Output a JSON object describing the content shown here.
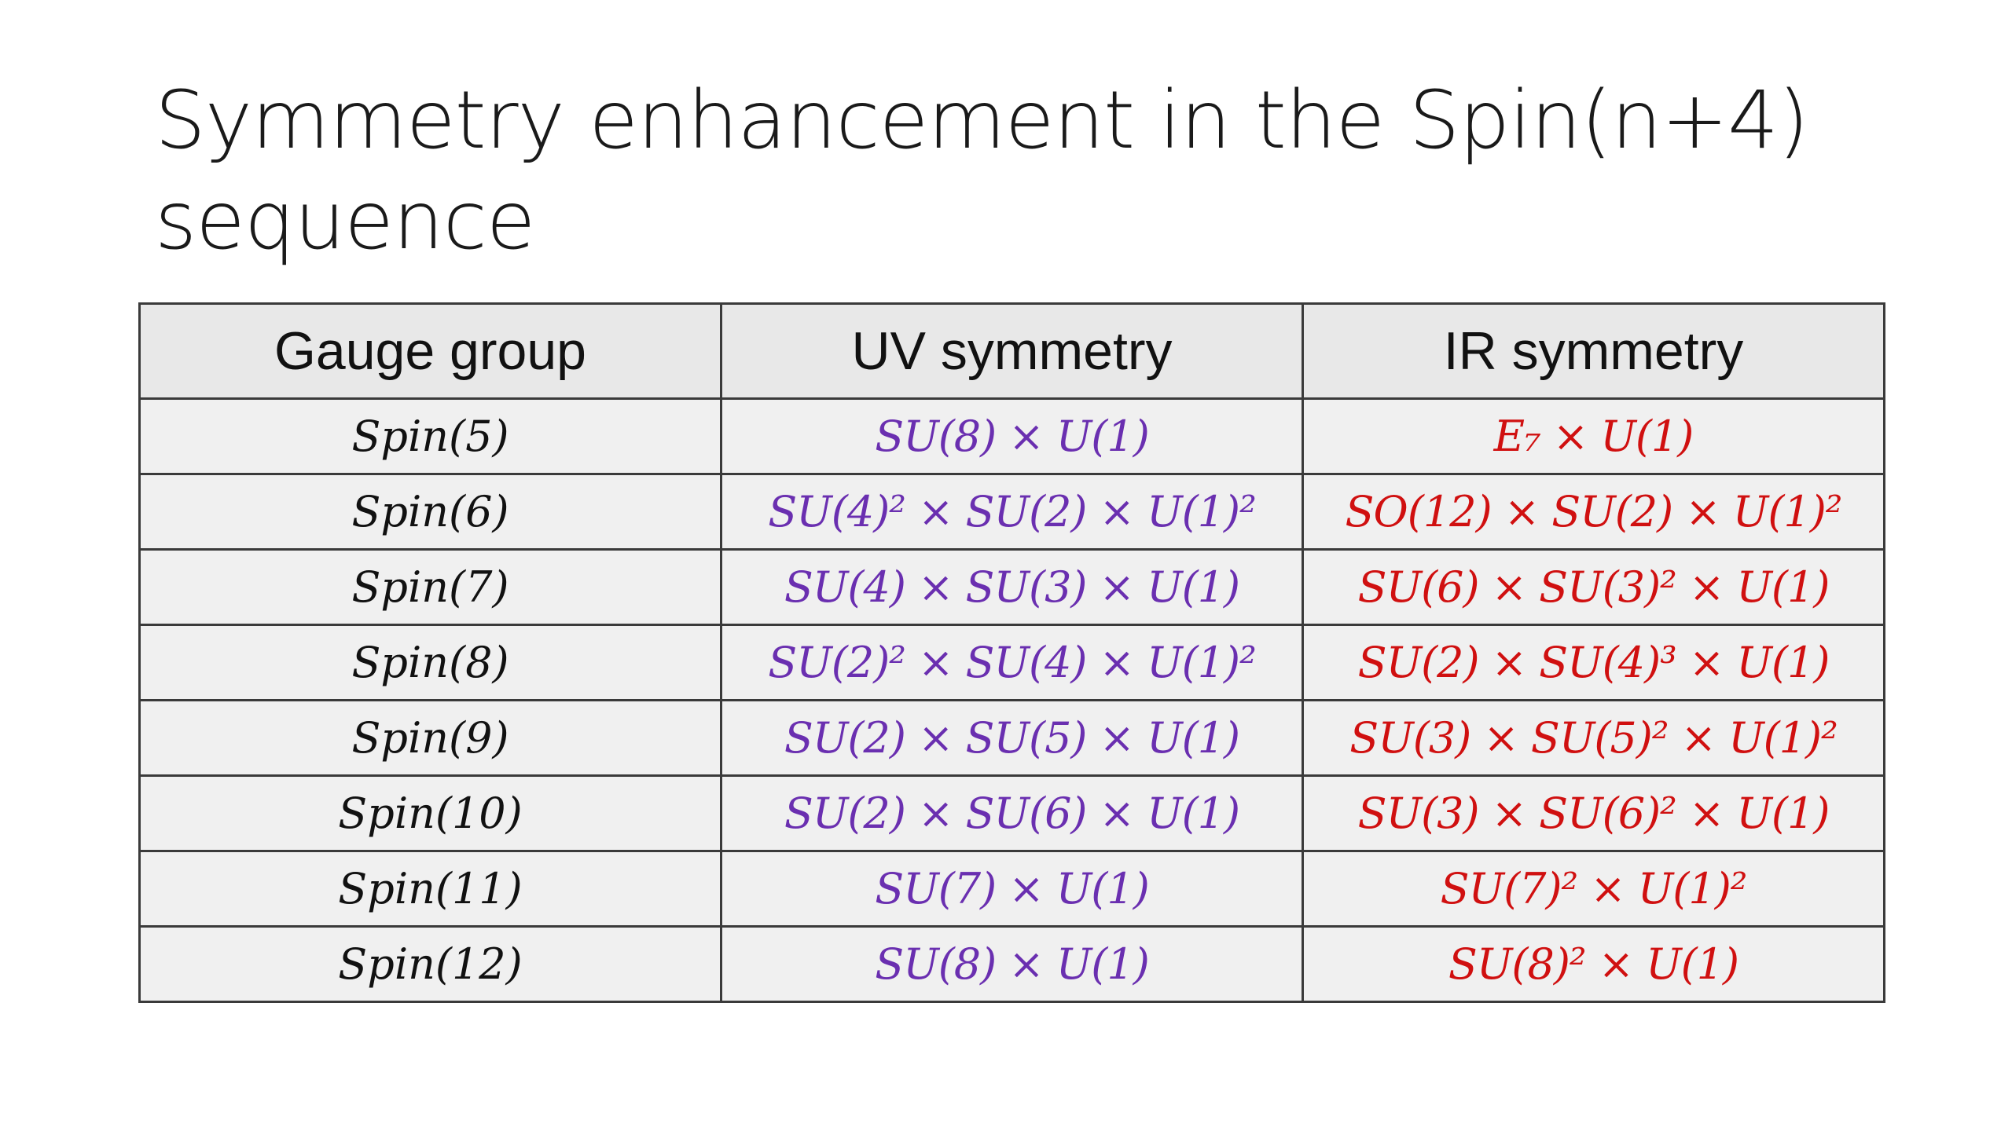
{
  "title": {
    "line1": "Symmetry enhancement in the Spin(n+4)",
    "line2": "sequence"
  },
  "colors": {
    "uv": "#6a2fb0",
    "ir": "#d01010",
    "text": "#111111"
  },
  "table": {
    "headers": [
      "Gauge group",
      "UV symmetry",
      "IR symmetry"
    ],
    "rows": [
      {
        "gauge": "Spin(5)",
        "uv": "SU(8) × U(1)",
        "ir": "E₇ × U(1)"
      },
      {
        "gauge": "Spin(6)",
        "uv": "SU(4)² × SU(2) × U(1)²",
        "ir": "SO(12) × SU(2) × U(1)²"
      },
      {
        "gauge": "Spin(7)",
        "uv": "SU(4) × SU(3) × U(1)",
        "ir": "SU(6) × SU(3)² × U(1)"
      },
      {
        "gauge": "Spin(8)",
        "uv": "SU(2)² × SU(4) × U(1)²",
        "ir": "SU(2) × SU(4)³ × U(1)"
      },
      {
        "gauge": "Spin(9)",
        "uv": "SU(2) × SU(5) × U(1)",
        "ir": "SU(3) × SU(5)² × U(1)²"
      },
      {
        "gauge": "Spin(10)",
        "uv": "SU(2) × SU(6) × U(1)",
        "ir": "SU(3) × SU(6)² × U(1)"
      },
      {
        "gauge": "Spin(11)",
        "uv": "SU(7) × U(1)",
        "ir": "SU(7)² × U(1)²"
      },
      {
        "gauge": "Spin(12)",
        "uv": "SU(8) × U(1)",
        "ir": "SU(8)² × U(1)"
      }
    ]
  }
}
